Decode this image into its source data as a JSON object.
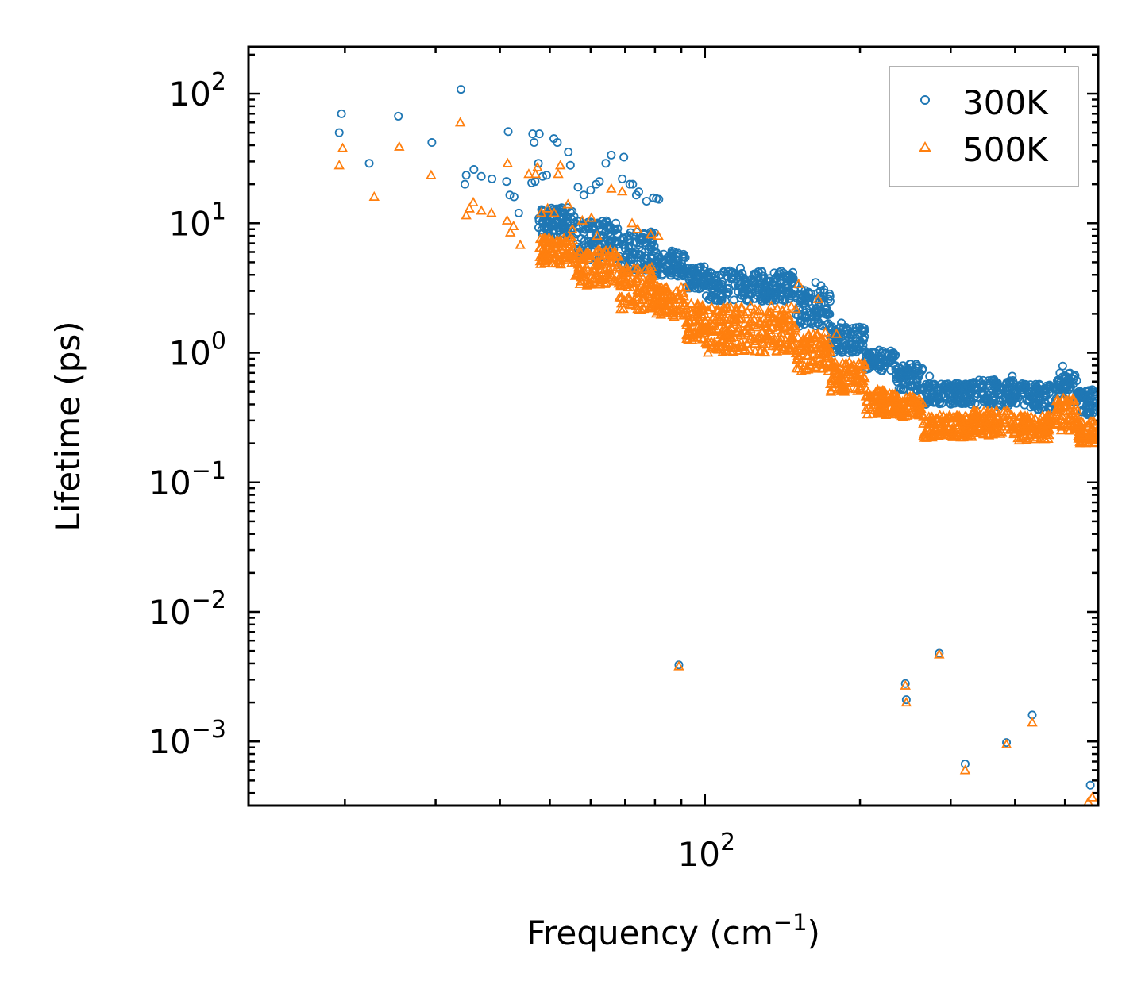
{
  "chart_data": {
    "type": "scatter",
    "title": "",
    "xlabel": "Frequency (cm",
    "xlabel_sup": "−1",
    "xlabel_suffix": ")",
    "ylabel": "Lifetime (ps)",
    "xscale": "log",
    "yscale": "log",
    "xlim": [
      13,
      580
    ],
    "ylim": [
      0.00032,
      230
    ],
    "x_ticks": [
      {
        "value": 100,
        "base": "10",
        "exp": "2"
      }
    ],
    "y_ticks": [
      {
        "value": 100,
        "base": "10",
        "exp": "2"
      },
      {
        "value": 10,
        "base": "10",
        "exp": "1"
      },
      {
        "value": 1,
        "base": "10",
        "exp": "0"
      },
      {
        "value": 0.1,
        "base": "10",
        "exp": "−1"
      },
      {
        "value": 0.01,
        "base": "10",
        "exp": "−2"
      },
      {
        "value": 0.001,
        "base": "10",
        "exp": "−3"
      }
    ],
    "legend_position": "top-right",
    "series": [
      {
        "name": "300K",
        "marker": "circle",
        "color": "#1f77b4",
        "points": [
          [
            19.5,
            50
          ],
          [
            19.7,
            70
          ],
          [
            22.3,
            29
          ],
          [
            25.4,
            67
          ],
          [
            29.5,
            42
          ],
          [
            33.6,
            108
          ],
          [
            34.2,
            20
          ],
          [
            34.4,
            23.5
          ],
          [
            35.6,
            26
          ],
          [
            36.8,
            23
          ],
          [
            38.6,
            22
          ],
          [
            41.5,
            51
          ],
          [
            41.2,
            21
          ],
          [
            41.8,
            16.5
          ],
          [
            42.6,
            16
          ],
          [
            43.5,
            12
          ],
          [
            46.6,
            42
          ],
          [
            47.7,
            49
          ],
          [
            47.5,
            29
          ],
          [
            46.3,
            49
          ],
          [
            46.1,
            20.5
          ],
          [
            46.8,
            21
          ],
          [
            48.4,
            23
          ],
          [
            49.3,
            23.5
          ],
          [
            50.9,
            45
          ],
          [
            51.7,
            42
          ],
          [
            54.3,
            35.5
          ],
          [
            54.8,
            28
          ],
          [
            56.7,
            19
          ],
          [
            58.2,
            16.5
          ],
          [
            60,
            18
          ],
          [
            61.5,
            20
          ],
          [
            62.4,
            21
          ],
          [
            64.2,
            29
          ],
          [
            65.8,
            33.6
          ],
          [
            69.1,
            22
          ],
          [
            69.6,
            32.4
          ],
          [
            71.5,
            20
          ],
          [
            72.4,
            20
          ],
          [
            73.6,
            16.5
          ],
          [
            74.4,
            17.5
          ],
          [
            77,
            14.8
          ],
          [
            79.4,
            15.7
          ],
          [
            80.5,
            15.5
          ],
          [
            81.4,
            15.3
          ],
          [
            88,
            4.8
          ],
          [
            89,
            0.0039
          ],
          [
            117.2,
            4.5
          ],
          [
            126.8,
            4.2
          ],
          [
            164,
            3.5
          ],
          [
            168,
            3.3
          ],
          [
            175,
            2.5
          ],
          [
            184,
            1.7
          ],
          [
            245,
            0.0028
          ],
          [
            246,
            0.0021
          ],
          [
            273,
            0.66
          ],
          [
            285,
            0.0048
          ],
          [
            320,
            0.00067
          ],
          [
            347,
            0.57
          ],
          [
            385,
            0.00098
          ],
          [
            395,
            0.66
          ],
          [
            432,
            0.0016
          ],
          [
            495,
            0.79
          ],
          [
            560,
            0.00046
          ],
          [
            565,
            0.52
          ]
        ],
        "bands": [
          {
            "from": 47.5,
            "to": 56,
            "low": 7.8,
            "high": 13.2
          },
          {
            "from": 56,
            "to": 68,
            "low": 5.2,
            "high": 10.5
          },
          {
            "from": 68,
            "to": 80,
            "low": 4.3,
            "high": 8.6
          },
          {
            "from": 80,
            "to": 92,
            "low": 3.9,
            "high": 6.2
          },
          {
            "from": 92,
            "to": 100,
            "low": 3.1,
            "high": 4.7
          },
          {
            "from": 100,
            "to": 150,
            "low": 2.5,
            "high": 4.3
          },
          {
            "from": 150,
            "to": 175,
            "low": 1.6,
            "high": 3.1
          },
          {
            "from": 175,
            "to": 205,
            "low": 1.0,
            "high": 1.6
          },
          {
            "from": 205,
            "to": 235,
            "low": 0.72,
            "high": 1.05
          },
          {
            "from": 235,
            "to": 265,
            "low": 0.5,
            "high": 0.82
          },
          {
            "from": 265,
            "to": 330,
            "low": 0.4,
            "high": 0.58
          },
          {
            "from": 330,
            "to": 400,
            "low": 0.38,
            "high": 0.62
          },
          {
            "from": 400,
            "to": 470,
            "low": 0.36,
            "high": 0.58
          },
          {
            "from": 480,
            "to": 530,
            "low": 0.42,
            "high": 0.7
          },
          {
            "from": 530,
            "to": 575,
            "low": 0.33,
            "high": 0.52
          }
        ]
      },
      {
        "name": "500K",
        "marker": "triangle",
        "color": "#ff7f0e",
        "points": [
          [
            19.5,
            28
          ],
          [
            19.8,
            38
          ],
          [
            22.8,
            16
          ],
          [
            25.5,
            39
          ],
          [
            29.4,
            23.5
          ],
          [
            33.5,
            60
          ],
          [
            34.4,
            11.5
          ],
          [
            34.9,
            13
          ],
          [
            35.5,
            14.5
          ],
          [
            36.8,
            12.5
          ],
          [
            38.5,
            12
          ],
          [
            41.4,
            29
          ],
          [
            41.3,
            10.5
          ],
          [
            41.9,
            8.5
          ],
          [
            42.5,
            9.5
          ],
          [
            43.8,
            6.8
          ],
          [
            45.5,
            24
          ],
          [
            47.3,
            27
          ],
          [
            46.9,
            24
          ],
          [
            48.1,
            12
          ],
          [
            49.5,
            13
          ],
          [
            51,
            12
          ],
          [
            51.9,
            24
          ],
          [
            52.4,
            28
          ],
          [
            54.2,
            14
          ],
          [
            55.3,
            9
          ],
          [
            57.8,
            10.5
          ],
          [
            60.2,
            11
          ],
          [
            61.8,
            8
          ],
          [
            65.8,
            18.5
          ],
          [
            69.1,
            17.6
          ],
          [
            72.2,
            10
          ],
          [
            74,
            9
          ],
          [
            78.5,
            8.2
          ],
          [
            81.2,
            8
          ],
          [
            89,
            0.0038
          ],
          [
            152,
            3.4
          ],
          [
            166,
            2.6
          ],
          [
            180,
            1.4
          ],
          [
            245,
            0.0027
          ],
          [
            246,
            0.002
          ],
          [
            285,
            0.0047
          ],
          [
            320,
            0.0006
          ],
          [
            385,
            0.00095
          ],
          [
            432,
            0.0014
          ],
          [
            555,
            0.00034
          ],
          [
            565,
            0.00037
          ]
        ],
        "bands": [
          {
            "from": 47.5,
            "to": 56,
            "low": 4.8,
            "high": 7.8
          },
          {
            "from": 56,
            "to": 68,
            "low": 3.3,
            "high": 6.2
          },
          {
            "from": 68,
            "to": 80,
            "low": 2.1,
            "high": 4.6
          },
          {
            "from": 80,
            "to": 92,
            "low": 1.9,
            "high": 3.3
          },
          {
            "from": 92,
            "to": 100,
            "low": 1.25,
            "high": 2.4
          },
          {
            "from": 100,
            "to": 150,
            "low": 1.0,
            "high": 2.3
          },
          {
            "from": 150,
            "to": 175,
            "low": 0.72,
            "high": 1.45
          },
          {
            "from": 175,
            "to": 205,
            "low": 0.5,
            "high": 0.85
          },
          {
            "from": 205,
            "to": 235,
            "low": 0.33,
            "high": 0.52
          },
          {
            "from": 235,
            "to": 265,
            "low": 0.32,
            "high": 0.46
          },
          {
            "from": 265,
            "to": 330,
            "low": 0.22,
            "high": 0.33
          },
          {
            "from": 330,
            "to": 400,
            "low": 0.23,
            "high": 0.36
          },
          {
            "from": 400,
            "to": 470,
            "low": 0.21,
            "high": 0.33
          },
          {
            "from": 480,
            "to": 530,
            "low": 0.25,
            "high": 0.45
          },
          {
            "from": 530,
            "to": 575,
            "low": 0.2,
            "high": 0.3
          }
        ]
      }
    ]
  }
}
